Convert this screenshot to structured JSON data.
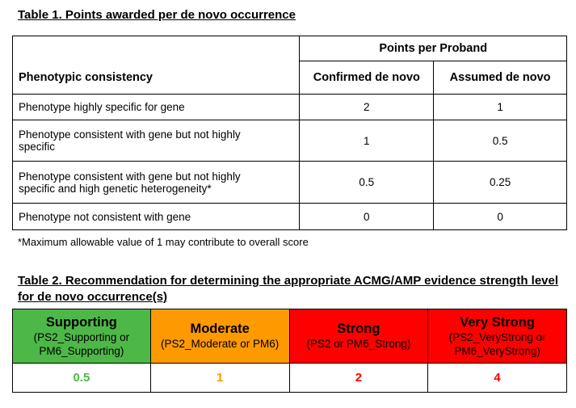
{
  "table1": {
    "title": "Table 1. Points awarded per de novo occurrence",
    "group_header": "Points per Proband",
    "col_header_phenotype": "Phenotypic consistency",
    "col_header_confirmed": "Confirmed de novo",
    "col_header_assumed": "Assumed de novo",
    "rows": [
      {
        "label": "Phenotype highly specific for gene",
        "confirmed": "2",
        "assumed": "1"
      },
      {
        "label": "Phenotype consistent with gene but not highly specific",
        "confirmed": "1",
        "assumed": "0.5"
      },
      {
        "label": "Phenotype consistent with gene but not highly specific and high genetic heterogeneity*",
        "confirmed": "0.5",
        "assumed": "0.25"
      },
      {
        "label": "Phenotype not consistent with gene",
        "confirmed": "0",
        "assumed": "0"
      }
    ],
    "footnote": "*Maximum allowable value of 1 may contribute to overall score"
  },
  "table2": {
    "title": "Table 2. Recommendation for determining the appropriate ACMG/AMP evidence strength level for de novo occurrence(s)",
    "categories": [
      {
        "name": "Supporting",
        "code": "(PS2_Supporting or PM6_Supporting)",
        "value": "0.5",
        "bg": "#4db847",
        "text_color": "#000000",
        "value_color": "#4db847"
      },
      {
        "name": "Moderate",
        "code": "(PS2_Moderate or PM6)",
        "value": "1",
        "bg": "#ff9900",
        "text_color": "#000000",
        "value_color": "#ff9900"
      },
      {
        "name": "Strong",
        "code": "(PS2 or PM6_Strong)",
        "value": "2",
        "bg": "#ff0000",
        "text_color": "#000000",
        "value_color": "#ff0000"
      },
      {
        "name": "Very Strong",
        "code": "(PS2_VeryStrong or PM6_VeryStrong)",
        "value": "4",
        "bg": "#ff0000",
        "text_color": "#000000",
        "value_color": "#ff0000"
      }
    ]
  }
}
